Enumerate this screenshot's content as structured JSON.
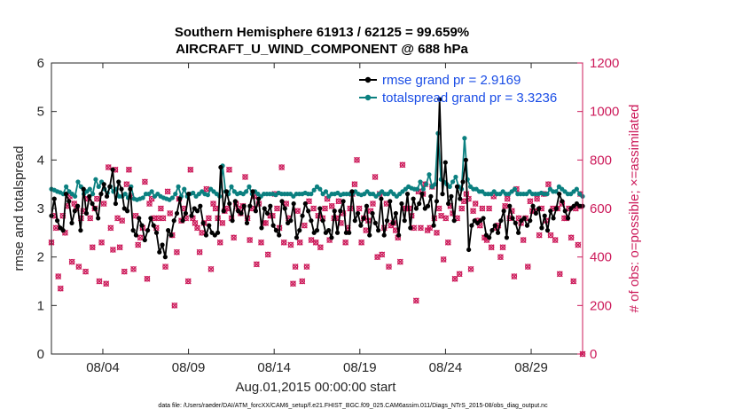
{
  "chart_data": {
    "type": "line",
    "title": "Southern Hemisphere 61913 / 62125 = 99.659%",
    "subtitle": "AIRCRAFT_U_WIND_COMPONENT @ 688 hPa",
    "xlabel": "Aug.01,2015 00:00:00 start",
    "ylabel": "rmse and totalspread",
    "y2label": "# of obs: o=possible; ×=assimilated",
    "x_range_days": [
      0,
      31
    ],
    "ylim": [
      0,
      6
    ],
    "y2lim": [
      0,
      1200
    ],
    "yticks": [
      "0",
      "1",
      "2",
      "3",
      "4",
      "5",
      "6"
    ],
    "y2ticks": [
      "0",
      "200",
      "400",
      "600",
      "800",
      "1000",
      "1200"
    ],
    "xticks": [
      {
        "label": "08/04",
        "day": 3
      },
      {
        "label": "08/09",
        "day": 8
      },
      {
        "label": "08/14",
        "day": 13
      },
      {
        "label": "08/19",
        "day": 18
      },
      {
        "label": "08/24",
        "day": 23
      },
      {
        "label": "08/29",
        "day": 28
      }
    ],
    "footer": "data file: /Users/raeder/DAI/ATM_forcXX/CAM6_setup/f.e21.FHIST_BGC.f09_025.CAM6assim.011/Diags_NTrS_2015-08/obs_diag_output.nc",
    "series": [
      {
        "name": "rmse grand pr = 2.9169",
        "color": "#000000",
        "values": [
          2.85,
          3.2,
          2.75,
          2.6,
          2.55,
          3.3,
          3.15,
          2.7,
          2.95,
          3.05,
          2.55,
          3.4,
          2.9,
          3.25,
          3.1,
          3.0,
          2.8,
          3.3,
          3.5,
          3.25,
          3.45,
          3.8,
          3.1,
          3.55,
          3.4,
          3.0,
          2.95,
          3.4,
          2.55,
          2.45,
          2.8,
          2.65,
          2.35,
          2.55,
          2.8,
          2.65,
          2.5,
          2.1,
          2.25,
          2.0,
          2.55,
          2.45,
          2.75,
          2.9,
          3.2,
          2.75,
          2.9,
          3.3,
          2.85,
          3.0,
          2.95,
          3.05,
          2.7,
          2.45,
          2.65,
          2.5,
          2.45,
          2.5,
          3.85,
          2.95,
          3.35,
          3.1,
          2.75,
          3.15,
          2.95,
          2.9,
          3.05,
          2.7,
          3.05,
          3.35,
          2.95,
          3.2,
          2.6,
          3.0,
          2.9,
          3.05,
          2.65,
          2.55,
          2.45,
          3.15,
          3.0,
          2.7,
          2.75,
          3.1,
          2.4,
          2.55,
          2.85,
          3.1,
          2.95,
          2.75,
          2.5,
          2.55,
          3.0,
          2.75,
          2.5,
          2.55,
          2.4,
          2.95,
          2.5,
          2.95,
          3.15,
          2.5,
          2.5,
          3.35,
          2.75,
          2.9,
          2.65,
          2.8,
          3.05,
          2.45,
          2.9,
          2.7,
          2.55,
          3.2,
          2.45,
          2.75,
          3.15,
          2.7,
          2.9,
          2.45,
          3.1,
          2.75,
          3.3,
          2.6,
          3.2,
          3.0,
          3.1,
          3.3,
          3.0,
          3.05,
          3.25,
          2.65,
          3.15,
          5.25,
          3.3,
          3.95,
          3.1,
          3.25,
          2.75,
          3.45,
          3.2,
          3.55,
          4.0,
          2.15,
          2.65,
          2.75,
          2.7,
          2.75,
          2.8,
          2.45,
          2.4,
          2.55,
          2.65,
          2.5,
          2.75,
          2.95,
          2.4,
          3.05,
          2.8,
          2.7,
          2.5,
          2.75,
          2.8,
          2.65,
          2.75,
          3.05,
          2.9,
          3.0,
          2.6,
          2.85,
          2.55,
          2.95,
          2.8,
          3.0,
          3.3,
          3.15,
          2.95,
          2.8,
          3.0,
          3.05,
          3.1,
          3.05,
          3.05
        ]
      },
      {
        "name": "totalspread grand pr = 3.3236",
        "color": "#0b8080",
        "values": [
          3.4,
          3.38,
          3.35,
          3.33,
          3.3,
          3.45,
          3.35,
          3.3,
          3.25,
          3.55,
          3.45,
          3.3,
          3.35,
          3.4,
          3.3,
          3.6,
          3.45,
          3.55,
          3.4,
          3.32,
          3.45,
          3.35,
          3.4,
          3.25,
          3.25,
          3.3,
          3.22,
          3.45,
          3.2,
          3.18,
          3.2,
          3.22,
          3.3,
          3.3,
          3.35,
          3.25,
          3.3,
          3.25,
          3.22,
          3.2,
          3.18,
          3.22,
          3.3,
          3.45,
          3.25,
          3.4,
          3.25,
          3.3,
          3.32,
          3.25,
          3.3,
          3.35,
          3.3,
          3.28,
          3.4,
          3.35,
          3.3,
          3.25,
          3.88,
          3.35,
          3.3,
          3.45,
          3.35,
          3.3,
          3.32,
          3.3,
          3.35,
          3.45,
          3.3,
          3.35,
          3.3,
          3.25,
          3.3,
          3.3,
          3.3,
          3.3,
          3.28,
          3.32,
          3.3,
          3.3,
          3.3,
          3.3,
          3.25,
          3.3,
          3.3,
          3.3,
          3.32,
          3.3,
          3.3,
          3.38,
          3.45,
          3.4,
          3.3,
          3.35,
          3.25,
          3.3,
          3.3,
          3.32,
          3.28,
          3.3,
          3.3,
          3.3,
          3.3,
          3.35,
          3.3,
          3.28,
          3.3,
          3.35,
          3.3,
          3.3,
          3.25,
          3.3,
          3.35,
          3.3,
          3.3,
          3.35,
          3.3,
          3.25,
          3.3,
          3.35,
          3.4,
          3.45,
          3.42,
          3.4,
          3.4,
          3.55,
          3.4,
          3.5,
          3.7,
          3.45,
          3.5,
          4.55,
          3.6,
          3.55,
          3.5,
          3.45,
          3.55,
          3.65,
          3.45,
          3.4,
          4.45,
          3.6,
          3.45,
          3.4,
          3.4,
          3.35,
          3.35,
          3.3,
          3.3,
          3.3,
          3.35,
          3.3,
          3.3,
          3.35,
          3.3,
          3.3,
          3.35,
          3.4,
          3.3,
          3.3,
          3.3,
          3.3,
          3.35,
          3.3,
          3.3,
          3.3,
          3.32,
          3.3,
          3.3,
          3.4,
          3.35,
          3.35,
          3.45,
          3.4,
          3.35,
          3.3,
          3.3,
          3.35,
          3.4,
          3.3,
          3.25
        ]
      }
    ],
    "obs_series": {
      "name": "# of obs",
      "color": "#cc1a5a",
      "values": [
        460,
        570,
        520,
        320,
        270,
        570,
        500,
        610,
        650,
        380,
        620,
        600,
        360,
        560,
        590,
        340,
        640,
        560,
        440,
        600,
        640,
        300,
        460,
        620,
        290,
        770,
        520,
        430,
        760,
        560,
        440,
        550,
        340,
        700,
        760,
        650,
        350,
        570,
        450,
        480,
        520,
        710,
        310,
        620,
        640,
        560,
        520,
        560,
        600,
        560,
        360,
        670,
        580,
        490,
        200,
        420,
        640,
        550,
        600,
        560,
        300,
        760,
        560,
        540,
        520,
        420,
        500,
        540,
        680,
        560,
        350,
        620,
        600,
        560,
        460,
        540,
        590,
        600,
        760,
        560,
        480,
        620,
        600,
        580,
        610,
        730,
        560,
        470,
        600,
        650,
        370,
        620,
        460,
        540,
        540,
        410,
        570,
        570,
        660,
        600,
        520,
        770,
        460,
        620,
        560,
        450,
        290,
        360,
        590,
        460,
        300,
        530,
        360,
        630,
        470,
        600,
        460,
        570,
        440,
        560,
        600,
        640,
        470,
        610,
        560,
        560,
        630,
        540,
        580,
        460,
        520,
        600,
        660,
        700,
        800,
        600,
        460,
        560,
        510,
        550,
        590,
        620,
        730,
        400,
        660,
        410,
        520,
        620,
        360,
        530,
        540,
        510,
        480,
        380,
        780,
        600,
        600,
        600,
        570,
        520,
        220,
        670,
        520,
        660,
        700,
        510,
        520,
        690,
        560,
        500,
        600,
        570,
        390,
        560,
        460,
        610,
        580,
        310,
        560,
        330,
        600,
        630,
        660,
        640,
        350,
        590,
        620,
        550,
        530,
        600,
        480,
        470,
        600,
        440,
        650,
        520,
        530,
        400,
        440,
        610,
        640,
        560,
        590,
        320,
        680,
        560,
        540,
        470,
        560,
        360,
        630,
        590,
        590,
        640,
        490,
        600,
        660,
        550,
        700,
        490,
        600,
        470,
        600,
        330,
        620,
        560,
        560,
        600,
        480,
        300,
        600,
        450,
        660,
        0
      ]
    }
  }
}
